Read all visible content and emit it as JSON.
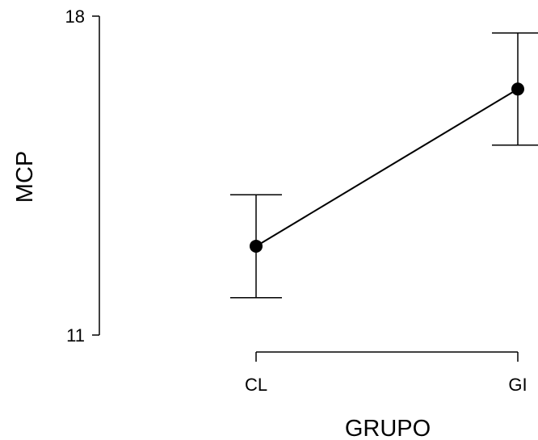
{
  "chart_data": {
    "type": "line",
    "xlabel": "GRUPO",
    "ylabel": "MCP",
    "categories": [
      "CL",
      "GI"
    ],
    "series": [
      {
        "values": [
          12.95,
          16.4
        ],
        "error_low": [
          11.82,
          15.17
        ],
        "error_high": [
          14.08,
          17.63
        ]
      }
    ],
    "ylim": [
      11,
      18
    ],
    "yticks": [
      11,
      18
    ],
    "grid": false,
    "legend": "none"
  }
}
